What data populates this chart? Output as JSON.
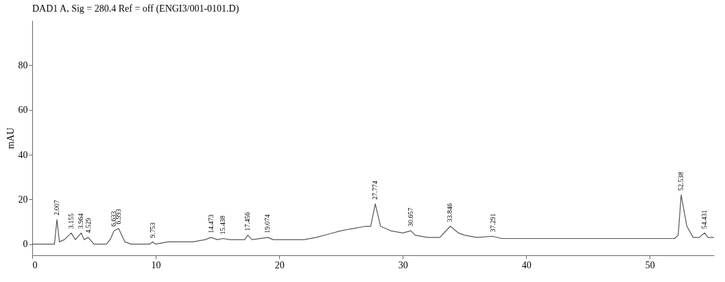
{
  "chart_data": {
    "type": "line",
    "title": "DAD1 A, Sig = 280.4 Ref = off (ENGI3/001-0101.D)",
    "ylabel": "mAU",
    "xlim": [
      0,
      55.2
    ],
    "ylim": [
      -5,
      100
    ],
    "xticks": [
      0,
      10,
      20,
      30,
      40,
      50
    ],
    "yticks": [
      0,
      20,
      40,
      60,
      80
    ],
    "grid": false,
    "marker": "none",
    "series": [
      {
        "color": "#555555",
        "x": [
          0,
          1.8,
          2.0,
          2.2,
          2.6,
          3.155,
          3.5,
          3.964,
          4.2,
          4.529,
          5,
          6,
          6.3,
          6.633,
          6.993,
          7.5,
          8,
          9.5,
          9.753,
          10,
          11,
          13,
          14,
          14.473,
          15,
          15.438,
          16,
          17.2,
          17.456,
          17.8,
          19.074,
          19.5,
          20,
          22,
          23,
          24,
          25,
          26,
          27,
          27.4,
          27.774,
          28.2,
          29,
          30,
          30.657,
          31,
          32,
          33,
          33.846,
          34.5,
          35,
          36,
          37.291,
          38,
          45,
          52,
          52.3,
          52.538,
          53,
          53.5,
          54,
          54.431,
          54.7,
          55.2
        ],
        "values": [
          0,
          0,
          11,
          1,
          2,
          5,
          2,
          5,
          2,
          3,
          0,
          0,
          2,
          6,
          7,
          1,
          0,
          0,
          1,
          0,
          1,
          1,
          2,
          3,
          2,
          2.5,
          2,
          2,
          4,
          2,
          3,
          2,
          2,
          2,
          3,
          4.5,
          6,
          7,
          8,
          8,
          18,
          8,
          6,
          5,
          6,
          4,
          3,
          3,
          8,
          5,
          4,
          3,
          3.5,
          2.5,
          2.5,
          2.5,
          4,
          22,
          8,
          3,
          3,
          5,
          3,
          3
        ]
      }
    ],
    "annotations": [
      {
        "text": "2.007",
        "x": 2.007,
        "y": 11
      },
      {
        "text": "3.155",
        "x": 3.155,
        "y": 5
      },
      {
        "text": "3.964",
        "x": 3.964,
        "y": 5
      },
      {
        "text": "4.529",
        "x": 4.529,
        "y": 3
      },
      {
        "text": "6.633",
        "x": 6.633,
        "y": 6
      },
      {
        "text": "6.993",
        "x": 6.993,
        "y": 7
      },
      {
        "text": "9.753",
        "x": 9.753,
        "y": 1
      },
      {
        "text": "14.473",
        "x": 14.473,
        "y": 3
      },
      {
        "text": "15.438",
        "x": 15.438,
        "y": 2.5
      },
      {
        "text": "17.456",
        "x": 17.456,
        "y": 4
      },
      {
        "text": "19.074",
        "x": 19.074,
        "y": 3
      },
      {
        "text": "27.774",
        "x": 27.774,
        "y": 18
      },
      {
        "text": "30.657",
        "x": 30.657,
        "y": 6
      },
      {
        "text": "33.846",
        "x": 33.846,
        "y": 8
      },
      {
        "text": "37.291",
        "x": 37.291,
        "y": 3.5
      },
      {
        "text": "52.538",
        "x": 52.538,
        "y": 22
      },
      {
        "text": "54.431",
        "x": 54.431,
        "y": 5
      }
    ]
  }
}
